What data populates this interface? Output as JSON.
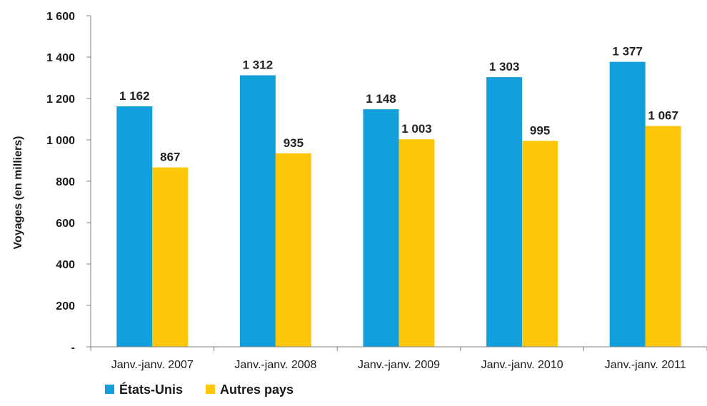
{
  "chart_data": {
    "type": "bar",
    "categories": [
      "Janv.-janv. 2007",
      "Janv.-janv. 2008",
      "Janv.-janv. 2009",
      "Janv.-janv. 2010",
      "Janv.-janv. 2011"
    ],
    "series": [
      {
        "name": "États-Unis",
        "color": "#139fdc",
        "values": [
          1162,
          1312,
          1148,
          1303,
          1377
        ],
        "labels": [
          "1 162",
          "1 312",
          "1 148",
          "1 303",
          "1 377"
        ]
      },
      {
        "name": "Autres pays",
        "color": "#ffc70a",
        "values": [
          867,
          935,
          1003,
          995,
          1067
        ],
        "labels": [
          "867",
          "935",
          "1 003",
          "995",
          "1 067"
        ]
      }
    ],
    "title": "",
    "xlabel": "",
    "ylabel": "Voyages (en milliers)",
    "ylim": [
      0,
      1600
    ],
    "yticks": [
      0,
      200,
      400,
      600,
      800,
      1000,
      1200,
      1400,
      1600
    ],
    "ytick_labels": [
      "-",
      "200",
      "400",
      "600",
      "800",
      "1 000",
      "1 200",
      "1 400",
      "1 600"
    ],
    "grid": false,
    "legend_position": "bottom-left"
  }
}
